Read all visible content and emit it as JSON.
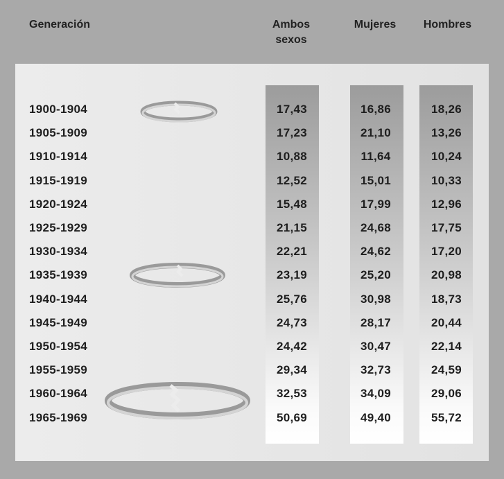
{
  "table": {
    "header": [
      "Generación",
      "Ambos sexos",
      "Mujeres",
      "Hombres"
    ],
    "rows": [
      [
        "1900-1904",
        "17,43",
        "16,86",
        "18,26"
      ],
      [
        "1905-1909",
        "17,23",
        "21,10",
        "13,26"
      ],
      [
        "1910-1914",
        "10,88",
        "11,64",
        "10,24"
      ],
      [
        "1915-1919",
        "12,52",
        "15,01",
        "10,33"
      ],
      [
        "1920-1924",
        "15,48",
        "17,99",
        "12,96"
      ],
      [
        "1925-1929",
        "21,15",
        "24,68",
        "17,75"
      ],
      [
        "1930-1934",
        "22,21",
        "24,62",
        "17,20"
      ],
      [
        "1935-1939",
        "23,19",
        "25,20",
        "20,98"
      ],
      [
        "1940-1944",
        "25,76",
        "30,98",
        "18,73"
      ],
      [
        "1945-1949",
        "24,73",
        "28,17",
        "20,44"
      ],
      [
        "1950-1954",
        "24,42",
        "30,47",
        "22,14"
      ],
      [
        "1955-1959",
        "29,34",
        "32,73",
        "24,59"
      ],
      [
        "1960-1964",
        "32,53",
        "34,09",
        "29,06"
      ],
      [
        "1965-1969",
        "50,69",
        "49,40",
        "55,72"
      ]
    ]
  }
}
